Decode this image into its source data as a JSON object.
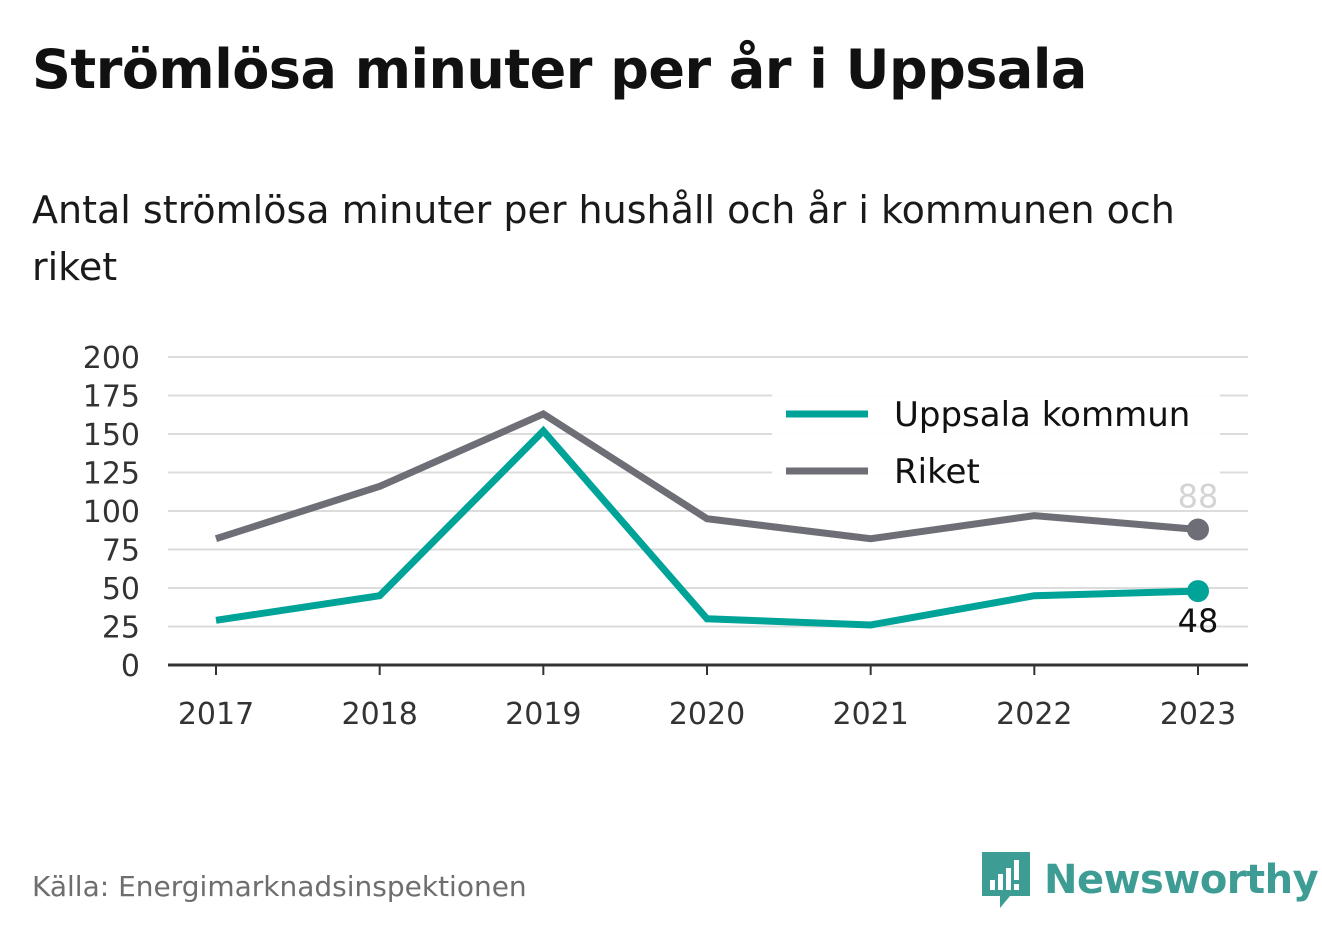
{
  "title": "Strömlösa minuter per år i Uppsala",
  "subtitle": "Antal strömlösa minuter per hushåll och år i kommunen och riket",
  "source": "Källa: Energimarknadsinspektionen",
  "brand": {
    "name": "Newsworthy",
    "icon": "newsworthy-logo-icon",
    "color": "#3d9c94"
  },
  "chart_data": {
    "type": "line",
    "x": [
      "2017",
      "2018",
      "2019",
      "2020",
      "2021",
      "2022",
      "2023"
    ],
    "y_ticks": [
      "0",
      "25",
      "50",
      "75",
      "100",
      "125",
      "150",
      "175",
      "200"
    ],
    "ylim": [
      0,
      200
    ],
    "grid": true,
    "legend_position": "top-right",
    "series": [
      {
        "name": "Uppsala kommun",
        "color": "#00a398",
        "values": [
          29,
          45,
          152,
          30,
          26,
          45,
          48
        ],
        "end_label": "48"
      },
      {
        "name": "Riket",
        "color": "#6e6e76",
        "values": [
          82,
          116,
          163,
          95,
          82,
          97,
          88
        ],
        "end_label": "88"
      }
    ]
  }
}
